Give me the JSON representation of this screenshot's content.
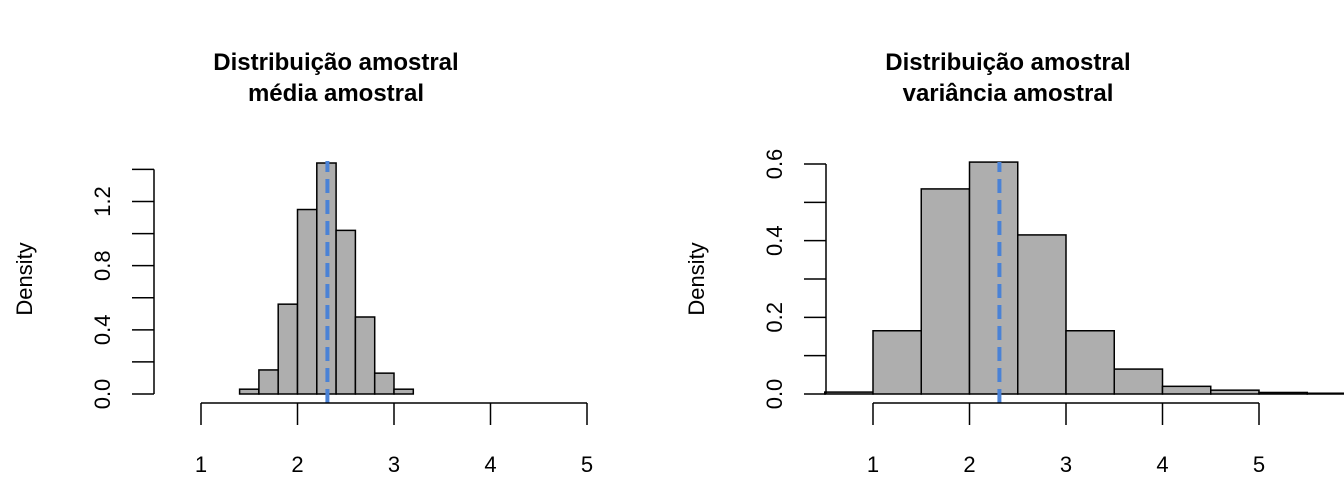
{
  "colors": {
    "bar_fill": "#AEAEAE",
    "bar_stroke": "#000000",
    "mean_line": "#4A82D6",
    "mean_line_accent": "#E0505A"
  },
  "chart_data": [
    {
      "type": "bar",
      "title": "Distribuição amostral",
      "subtitle": "média amostral",
      "ylabel": "Density",
      "xlabel": "",
      "bins": [
        {
          "x0": 1.4,
          "x1": 1.6,
          "density": 0.03
        },
        {
          "x0": 1.6,
          "x1": 1.8,
          "density": 0.15
        },
        {
          "x0": 1.8,
          "x1": 2.0,
          "density": 0.56
        },
        {
          "x0": 2.0,
          "x1": 2.2,
          "density": 1.15
        },
        {
          "x0": 2.2,
          "x1": 2.4,
          "density": 1.44
        },
        {
          "x0": 2.4,
          "x1": 2.6,
          "density": 1.02
        },
        {
          "x0": 2.6,
          "x1": 2.8,
          "density": 0.48
        },
        {
          "x0": 2.8,
          "x1": 3.0,
          "density": 0.13
        },
        {
          "x0": 3.0,
          "x1": 3.2,
          "density": 0.03
        }
      ],
      "mean_line_x": 2.31,
      "xlim": [
        1,
        5
      ],
      "ylim": [
        0,
        1.44
      ],
      "x_ticks": [
        1,
        2,
        3,
        4,
        5
      ],
      "x_tick_labels": [
        "1",
        "2",
        "3",
        "4",
        "5"
      ],
      "y_ticks": [
        0,
        0.2,
        0.4,
        0.6,
        0.8,
        1.0,
        1.2,
        1.4
      ],
      "y_tick_labels": [
        "0.0",
        "",
        "0.4",
        "",
        "0.8",
        "",
        "1.2",
        ""
      ]
    },
    {
      "type": "bar",
      "title": "Distribuição amostral",
      "subtitle": "variância amostral",
      "ylabel": "Density",
      "xlabel": "",
      "bins": [
        {
          "x0": 0.5,
          "x1": 1.0,
          "density": 0.005
        },
        {
          "x0": 1.0,
          "x1": 1.5,
          "density": 0.165
        },
        {
          "x0": 1.5,
          "x1": 2.0,
          "density": 0.535
        },
        {
          "x0": 2.0,
          "x1": 2.5,
          "density": 0.605
        },
        {
          "x0": 2.5,
          "x1": 3.0,
          "density": 0.415
        },
        {
          "x0": 3.0,
          "x1": 3.5,
          "density": 0.165
        },
        {
          "x0": 3.5,
          "x1": 4.0,
          "density": 0.065
        },
        {
          "x0": 4.0,
          "x1": 4.5,
          "density": 0.02
        },
        {
          "x0": 4.5,
          "x1": 5.0,
          "density": 0.01
        },
        {
          "x0": 5.0,
          "x1": 5.5,
          "density": 0.004
        },
        {
          "x0": 5.5,
          "x1": 6.0,
          "density": 0.002
        }
      ],
      "mean_line_x": 2.31,
      "xlim": [
        1,
        5
      ],
      "ylim": [
        0,
        0.6
      ],
      "x_ticks": [
        1,
        2,
        3,
        4,
        5
      ],
      "x_tick_labels": [
        "1",
        "2",
        "3",
        "4",
        "5"
      ],
      "y_ticks": [
        0,
        0.1,
        0.2,
        0.3,
        0.4,
        0.5,
        0.6
      ],
      "y_tick_labels": [
        "0.0",
        "",
        "0.2",
        "",
        "0.4",
        "",
        "0.6"
      ]
    }
  ]
}
